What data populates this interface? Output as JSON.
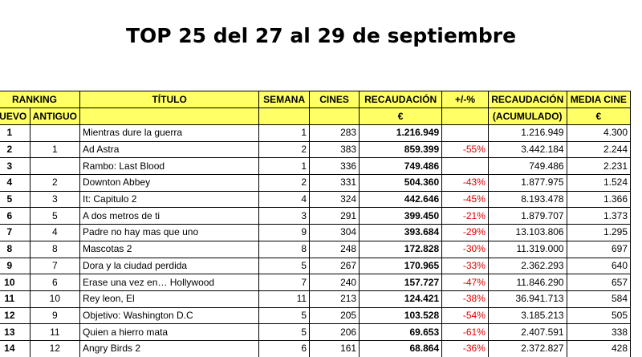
{
  "header": {
    "title": "TOP 25 del 27 al 29 de septiembre"
  },
  "table": {
    "header_rows": [
      [
        "RANKING",
        "TÍTULO",
        "SEMANA",
        "CINES",
        "RECAUDACIÓN",
        "+/-%",
        "RECAUDACIÓN",
        "MEDIA CINE"
      ],
      [
        "NUEVO",
        "ANTIGUO",
        null,
        null,
        null,
        "€",
        null,
        "(ACUMULADO)",
        "€"
      ]
    ],
    "rows": [
      [
        "1",
        null,
        "Mientras dure la guerra",
        "1",
        "283",
        "1.216.949",
        null,
        "1.216.949",
        "4.300"
      ],
      [
        "2",
        "1",
        "Ad Astra",
        "2",
        "383",
        "859.399",
        "-55%",
        "3.442.184",
        "2.244"
      ],
      [
        "3",
        null,
        "Rambo: Last Blood",
        "1",
        "336",
        "749.486",
        null,
        "749.486",
        "2.231"
      ],
      [
        "4",
        "2",
        "Downton Abbey",
        "2",
        "331",
        "504.360",
        "-43%",
        "1.877.975",
        "1.524"
      ],
      [
        "5",
        "3",
        "It: Capitulo 2",
        "4",
        "324",
        "442.646",
        "-45%",
        "8.193.478",
        "1.366"
      ],
      [
        "6",
        "5",
        "A dos metros de ti",
        "3",
        "291",
        "399.450",
        "-21%",
        "1.879.707",
        "1.373"
      ],
      [
        "7",
        "4",
        "Padre no hay mas que uno",
        "9",
        "304",
        "393.684",
        "-29%",
        "13.103.806",
        "1.295"
      ],
      [
        "8",
        "8",
        "Mascotas 2",
        "8",
        "248",
        "172.828",
        "-30%",
        "11.319.000",
        "697"
      ],
      [
        "9",
        "7",
        "Dora y la ciudad perdida",
        "5",
        "267",
        "170.965",
        "-33%",
        "2.362.293",
        "640"
      ],
      [
        "10",
        "6",
        "Erase una vez en… Hollywood",
        "7",
        "240",
        "157.727",
        "-47%",
        "11.846.290",
        "657"
      ],
      [
        "11",
        "10",
        "Rey leon, El",
        "11",
        "213",
        "124.421",
        "-38%",
        "36.941.713",
        "584"
      ],
      [
        "12",
        "9",
        "Objetivo: Washington D.C",
        "5",
        "205",
        "103.528",
        "-54%",
        "3.185.213",
        "505"
      ],
      [
        "13",
        "11",
        "Quien a hierro mata",
        "5",
        "206",
        "69.653",
        "-61%",
        "2.407.591",
        "338"
      ],
      [
        "14",
        "12",
        "Angry Birds 2",
        "6",
        "161",
        "68.864",
        "-36%",
        "2.372.827",
        "428"
      ]
    ]
  }
}
